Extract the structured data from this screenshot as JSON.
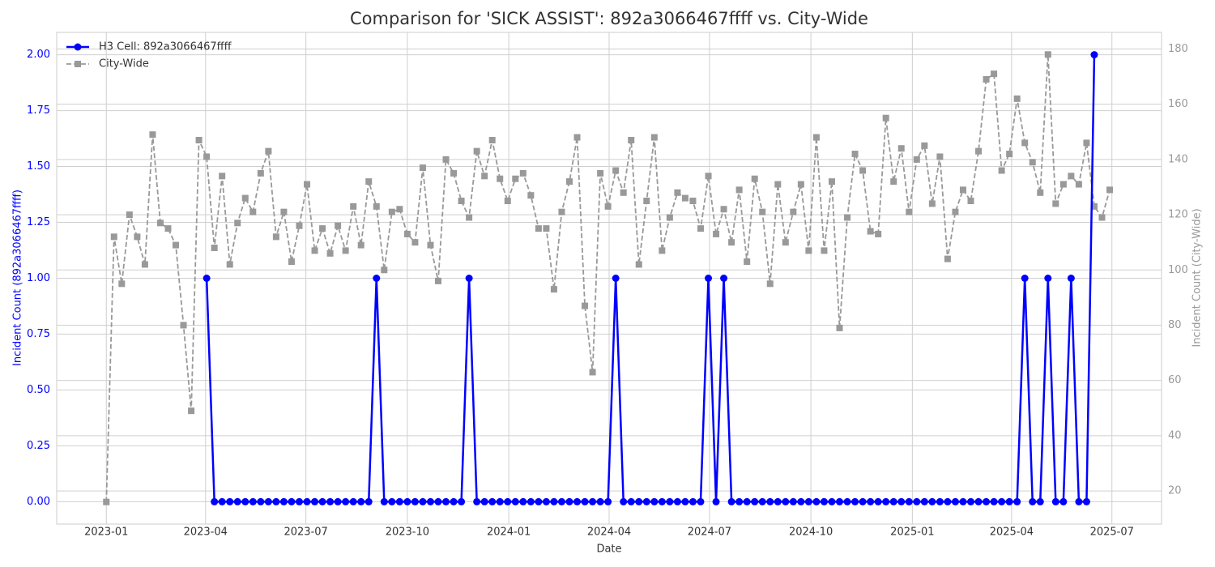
{
  "chart_data": {
    "type": "line",
    "title": "Comparison for 'SICK ASSIST': 892a3066467ffff vs. City-Wide",
    "xlabel": "Date",
    "ylabel": "Incident Count (892a3066467ffff)",
    "y2label": "Incident Count (City-Wide)",
    "x": [
      "2023-01-01",
      "2023-01-08",
      "2023-01-15",
      "2023-01-22",
      "2023-01-29",
      "2023-02-05",
      "2023-02-12",
      "2023-02-19",
      "2023-02-26",
      "2023-03-05",
      "2023-03-12",
      "2023-03-19",
      "2023-03-26",
      "2023-04-02",
      "2023-04-09",
      "2023-04-16",
      "2023-04-23",
      "2023-04-30",
      "2023-05-07",
      "2023-05-14",
      "2023-05-21",
      "2023-05-28",
      "2023-06-04",
      "2023-06-11",
      "2023-06-18",
      "2023-06-25",
      "2023-07-02",
      "2023-07-09",
      "2023-07-16",
      "2023-07-23",
      "2023-07-30",
      "2023-08-06",
      "2023-08-13",
      "2023-08-20",
      "2023-08-27",
      "2023-09-03",
      "2023-09-10",
      "2023-09-17",
      "2023-09-24",
      "2023-10-01",
      "2023-10-08",
      "2023-10-15",
      "2023-10-22",
      "2023-10-29",
      "2023-11-05",
      "2023-11-12",
      "2023-11-19",
      "2023-11-26",
      "2023-12-03",
      "2023-12-10",
      "2023-12-17",
      "2023-12-24",
      "2023-12-31",
      "2024-01-07",
      "2024-01-14",
      "2024-01-21",
      "2024-01-28",
      "2024-02-04",
      "2024-02-11",
      "2024-02-18",
      "2024-02-25",
      "2024-03-03",
      "2024-03-10",
      "2024-03-17",
      "2024-03-24",
      "2024-03-31",
      "2024-04-07",
      "2024-04-14",
      "2024-04-21",
      "2024-04-28",
      "2024-05-05",
      "2024-05-12",
      "2024-05-19",
      "2024-05-26",
      "2024-06-02",
      "2024-06-09",
      "2024-06-16",
      "2024-06-23",
      "2024-06-30",
      "2024-07-07",
      "2024-07-14",
      "2024-07-21",
      "2024-07-28",
      "2024-08-04",
      "2024-08-11",
      "2024-08-18",
      "2024-08-25",
      "2024-09-01",
      "2024-09-08",
      "2024-09-15",
      "2024-09-22",
      "2024-09-29",
      "2024-10-06",
      "2024-10-13",
      "2024-10-20",
      "2024-10-27",
      "2024-11-03",
      "2024-11-10",
      "2024-11-17",
      "2024-11-24",
      "2024-12-01",
      "2024-12-08",
      "2024-12-15",
      "2024-12-22",
      "2024-12-29",
      "2025-01-05",
      "2025-01-12",
      "2025-01-19",
      "2025-01-26",
      "2025-02-02",
      "2025-02-09",
      "2025-02-16",
      "2025-02-23",
      "2025-03-02",
      "2025-03-09",
      "2025-03-16",
      "2025-03-23",
      "2025-03-30",
      "2025-04-06",
      "2025-04-13",
      "2025-04-20",
      "2025-04-27",
      "2025-05-04",
      "2025-05-11",
      "2025-05-18",
      "2025-05-25",
      "2025-06-01",
      "2025-06-08",
      "2025-06-15",
      "2025-06-22",
      "2025-06-29"
    ],
    "series": [
      {
        "name": "H3 Cell: 892a3066467ffff",
        "color": "#0000ff",
        "axis": "y",
        "marker": "circle",
        "dash": false,
        "values": [
          null,
          null,
          null,
          null,
          null,
          null,
          null,
          null,
          null,
          null,
          null,
          null,
          null,
          1,
          0,
          0,
          0,
          0,
          0,
          0,
          0,
          0,
          0,
          0,
          0,
          0,
          0,
          0,
          0,
          0,
          0,
          0,
          0,
          0,
          0,
          1,
          0,
          0,
          0,
          0,
          0,
          0,
          0,
          0,
          0,
          0,
          0,
          1,
          0,
          0,
          0,
          0,
          0,
          0,
          0,
          0,
          0,
          0,
          0,
          0,
          0,
          0,
          0,
          0,
          0,
          0,
          1,
          0,
          0,
          0,
          0,
          0,
          0,
          0,
          0,
          0,
          0,
          0,
          1,
          0,
          1,
          0,
          0,
          0,
          0,
          0,
          0,
          0,
          0,
          0,
          0,
          0,
          0,
          0,
          0,
          0,
          0,
          0,
          0,
          0,
          0,
          0,
          0,
          0,
          0,
          0,
          0,
          0,
          0,
          0,
          0,
          0,
          0,
          0,
          0,
          0,
          0,
          0,
          0,
          1,
          0,
          0,
          1,
          0,
          0,
          1,
          0,
          0,
          2,
          null,
          null
        ]
      },
      {
        "name": "City-Wide",
        "color": "#999999",
        "axis": "y2",
        "marker": "square",
        "dash": true,
        "values": [
          16,
          112,
          95,
          120,
          112,
          102,
          149,
          117,
          115,
          109,
          80,
          49,
          147,
          141,
          108,
          134,
          102,
          117,
          126,
          121,
          135,
          143,
          112,
          121,
          103,
          116,
          131,
          107,
          115,
          106,
          116,
          107,
          123,
          109,
          132,
          123,
          100,
          121,
          122,
          113,
          110,
          137,
          109,
          96,
          140,
          135,
          125,
          119,
          143,
          134,
          147,
          133,
          125,
          133,
          135,
          127,
          115,
          115,
          93,
          121,
          132,
          148,
          87,
          63,
          135,
          123,
          136,
          128,
          147,
          102,
          125,
          148,
          107,
          119,
          128,
          126,
          125,
          115,
          134,
          113,
          122,
          110,
          129,
          103,
          133,
          121,
          95,
          131,
          110,
          121,
          131,
          107,
          148,
          107,
          132,
          79,
          119,
          142,
          136,
          114,
          113,
          155,
          132,
          144,
          121,
          140,
          145,
          124,
          141,
          104,
          121,
          129,
          125,
          143,
          169,
          171,
          136,
          142,
          162,
          146,
          139,
          128,
          178,
          124,
          131,
          134,
          131,
          146,
          123,
          119,
          129
        ]
      }
    ],
    "xlim": [
      "2022-11-17",
      "2025-08-15"
    ],
    "xticks": [
      {
        "value": "2023-01-01",
        "label": "2023-01"
      },
      {
        "value": "2023-04-01",
        "label": "2023-04"
      },
      {
        "value": "2023-07-01",
        "label": "2023-07"
      },
      {
        "value": "2023-10-01",
        "label": "2023-10"
      },
      {
        "value": "2024-01-01",
        "label": "2024-01"
      },
      {
        "value": "2024-04-01",
        "label": "2024-04"
      },
      {
        "value": "2024-07-01",
        "label": "2024-07"
      },
      {
        "value": "2024-10-01",
        "label": "2024-10"
      },
      {
        "value": "2025-01-01",
        "label": "2025-01"
      },
      {
        "value": "2025-04-01",
        "label": "2025-04"
      },
      {
        "value": "2025-07-01",
        "label": "2025-07"
      }
    ],
    "ylim": [
      -0.1,
      2.1
    ],
    "yticks": [
      {
        "value": 0,
        "label": "0.00"
      },
      {
        "value": 0.25,
        "label": "0.25"
      },
      {
        "value": 0.5,
        "label": "0.50"
      },
      {
        "value": 0.75,
        "label": "0.75"
      },
      {
        "value": 1,
        "label": "1.00"
      },
      {
        "value": 1.25,
        "label": "1.25"
      },
      {
        "value": 1.5,
        "label": "1.50"
      },
      {
        "value": 1.75,
        "label": "1.75"
      },
      {
        "value": 2,
        "label": "2.00"
      }
    ],
    "y2lim": [
      8,
      186
    ],
    "y2ticks": [
      20,
      40,
      60,
      80,
      100,
      120,
      140,
      160,
      180
    ],
    "grid": true,
    "legend": "upper-left"
  }
}
